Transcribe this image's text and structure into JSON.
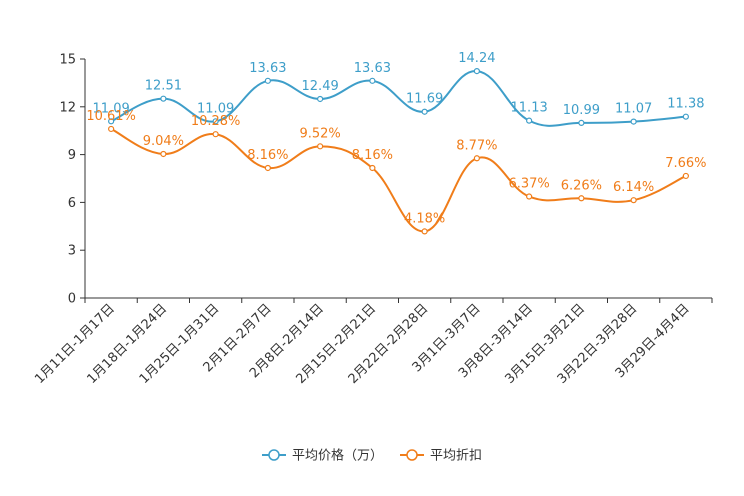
{
  "chart_data": {
    "type": "line",
    "title": "",
    "xlabel": "",
    "ylabel": "",
    "ylim": [
      0,
      15
    ],
    "yticks": [
      0,
      3,
      6,
      9,
      12,
      15
    ],
    "categories": [
      "1月11日-1月17日",
      "1月18日-1月24日",
      "1月25日-1月31日",
      "2月1日-2月7日",
      "2月8日-2月14日",
      "2月15日-2月21日",
      "2月22日-2月28日",
      "3月1日-3月7日",
      "3月8日-3月14日",
      "3月15日-3月21日",
      "3月22日-3月28日",
      "3月29日-4月4日"
    ],
    "series": [
      {
        "name": "平均价格（万）",
        "color": "#3e9ec9",
        "values": [
          11.09,
          12.51,
          11.09,
          13.63,
          12.49,
          13.63,
          11.69,
          14.24,
          11.13,
          10.99,
          11.07,
          11.38
        ],
        "labels": [
          "11.09",
          "12.51",
          "11.09",
          "13.63",
          "12.49",
          "13.63",
          "11.69",
          "14.24",
          "11.13",
          "10.99",
          "11.07",
          "11.38"
        ]
      },
      {
        "name": "平均折扣",
        "color": "#f07d1a",
        "values": [
          10.61,
          9.04,
          10.28,
          8.16,
          9.52,
          8.16,
          4.18,
          8.77,
          6.37,
          6.26,
          6.14,
          7.66
        ],
        "labels": [
          "10.61%",
          "9.04%",
          "10.28%",
          "8.16%",
          "9.52%",
          "8.16%",
          "4.18%",
          "8.77%",
          "6.37%",
          "6.26%",
          "6.14%",
          "7.66%"
        ]
      }
    ],
    "legend_position": "bottom-center",
    "grid": false
  }
}
